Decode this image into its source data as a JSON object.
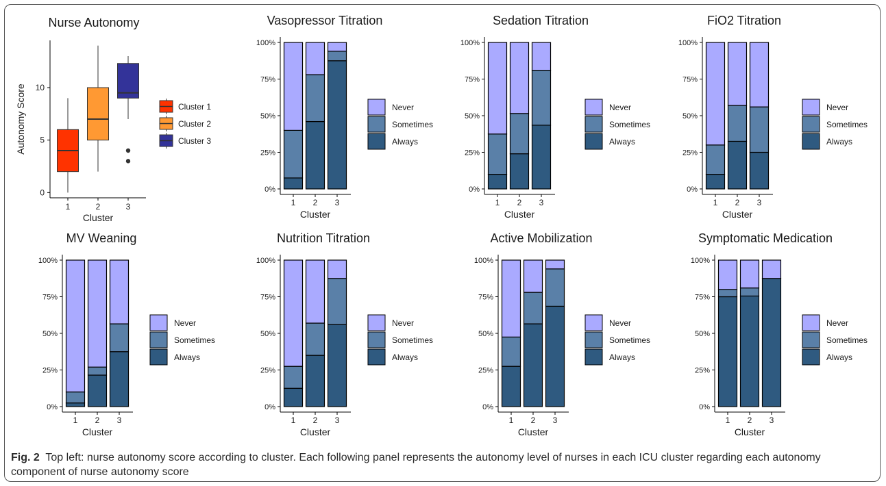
{
  "caption": {
    "label": "Fig. 2",
    "text": "Top left: nurse autonomy score according to cluster. Each following panel represents the autonomy level of nurses in each ICU cluster regarding each autonomy component of nurse autonomy score"
  },
  "colors": {
    "cluster_1": "#FF3300",
    "cluster_2": "#FF9933",
    "cluster_3": "#333399",
    "never": "#AAAAFF",
    "sometimes": "#5A80A8",
    "always": "#2F5A80"
  },
  "chart_data": [
    {
      "type": "box",
      "title": "Nurse Autonomy",
      "xlabel": "Cluster",
      "ylabel": "Autonomy Score",
      "categories": [
        "1",
        "2",
        "3"
      ],
      "ylim": [
        -0.5,
        14.5
      ],
      "yticks": [
        0,
        5,
        10
      ],
      "boxes": [
        {
          "name": "Cluster 1",
          "min": 0,
          "q1": 2,
          "median": 4,
          "q3": 6,
          "max": 9,
          "outliers": []
        },
        {
          "name": "Cluster 2",
          "min": 2,
          "q1": 5,
          "median": 7,
          "q3": 10,
          "max": 14,
          "outliers": []
        },
        {
          "name": "Cluster 3",
          "min": 7,
          "q1": 9,
          "median": 9.5,
          "q3": 12.3,
          "max": 13,
          "outliers": [
            3,
            4
          ]
        }
      ],
      "legend": [
        "Cluster 1",
        "Cluster 2",
        "Cluster 3"
      ],
      "legend_placement": "right",
      "grid": false
    },
    {
      "type": "bar",
      "stacked": true,
      "title": "Vasopressor Titration",
      "xlabel": "Cluster",
      "categories": [
        "1",
        "2",
        "3"
      ],
      "ylim": [
        0,
        100
      ],
      "yticks": [
        "0%",
        "25%",
        "50%",
        "75%",
        "100%"
      ],
      "series": [
        {
          "name": "Always",
          "values": [
            7.5,
            46,
            87.5
          ]
        },
        {
          "name": "Sometimes",
          "values": [
            32.5,
            32,
            6.5
          ]
        },
        {
          "name": "Never",
          "values": [
            60,
            22,
            6
          ]
        }
      ],
      "legend": [
        "Never",
        "Sometimes",
        "Always"
      ],
      "legend_placement": "right",
      "grid": false
    },
    {
      "type": "bar",
      "stacked": true,
      "title": "Sedation Titration",
      "xlabel": "Cluster",
      "categories": [
        "1",
        "2",
        "3"
      ],
      "ylim": [
        0,
        100
      ],
      "yticks": [
        "0%",
        "25%",
        "50%",
        "75%",
        "100%"
      ],
      "series": [
        {
          "name": "Always",
          "values": [
            10,
            24,
            43.5
          ]
        },
        {
          "name": "Sometimes",
          "values": [
            27.5,
            27.5,
            37.5
          ]
        },
        {
          "name": "Never",
          "values": [
            62.5,
            48.5,
            19
          ]
        }
      ],
      "legend": [
        "Never",
        "Sometimes",
        "Always"
      ],
      "legend_placement": "right",
      "grid": false
    },
    {
      "type": "bar",
      "stacked": true,
      "title": "FiO2 Titration",
      "xlabel": "Cluster",
      "categories": [
        "1",
        "2",
        "3"
      ],
      "ylim": [
        0,
        100
      ],
      "yticks": [
        "0%",
        "25%",
        "50%",
        "75%",
        "100%"
      ],
      "series": [
        {
          "name": "Always",
          "values": [
            10,
            32.5,
            25
          ]
        },
        {
          "name": "Sometimes",
          "values": [
            20,
            24.5,
            31
          ]
        },
        {
          "name": "Never",
          "values": [
            70,
            43,
            44
          ]
        }
      ],
      "legend": [
        "Never",
        "Sometimes",
        "Always"
      ],
      "legend_placement": "right",
      "grid": false
    },
    {
      "type": "bar",
      "stacked": true,
      "title": "MV Weaning",
      "xlabel": "Cluster",
      "categories": [
        "1",
        "2",
        "3"
      ],
      "ylim": [
        0,
        100
      ],
      "yticks": [
        "0%",
        "25%",
        "50%",
        "75%",
        "100%"
      ],
      "series": [
        {
          "name": "Always",
          "values": [
            2.5,
            21.5,
            37.5
          ]
        },
        {
          "name": "Sometimes",
          "values": [
            7.5,
            5.5,
            19
          ]
        },
        {
          "name": "Never",
          "values": [
            90,
            73,
            43.5
          ]
        }
      ],
      "legend": [
        "Never",
        "Sometimes",
        "Always"
      ],
      "legend_placement": "right",
      "grid": false
    },
    {
      "type": "bar",
      "stacked": true,
      "title": "Nutrition Titration",
      "xlabel": "Cluster",
      "categories": [
        "1",
        "2",
        "3"
      ],
      "ylim": [
        0,
        100
      ],
      "yticks": [
        "0%",
        "25%",
        "50%",
        "75%",
        "100%"
      ],
      "series": [
        {
          "name": "Always",
          "values": [
            12.5,
            35,
            56
          ]
        },
        {
          "name": "Sometimes",
          "values": [
            15,
            22,
            31.5
          ]
        },
        {
          "name": "Never",
          "values": [
            72.5,
            43,
            12.5
          ]
        }
      ],
      "legend": [
        "Never",
        "Sometimes",
        "Always"
      ],
      "legend_placement": "right",
      "grid": false
    },
    {
      "type": "bar",
      "stacked": true,
      "title": "Active Mobilization",
      "xlabel": "Cluster",
      "categories": [
        "1",
        "2",
        "3"
      ],
      "ylim": [
        0,
        100
      ],
      "yticks": [
        "0%",
        "25%",
        "50%",
        "75%",
        "100%"
      ],
      "series": [
        {
          "name": "Always",
          "values": [
            27.5,
            56.5,
            68.5
          ]
        },
        {
          "name": "Sometimes",
          "values": [
            20,
            21.5,
            25.5
          ]
        },
        {
          "name": "Never",
          "values": [
            52.5,
            22,
            6
          ]
        }
      ],
      "legend": [
        "Never",
        "Sometimes",
        "Always"
      ],
      "legend_placement": "right",
      "grid": false
    },
    {
      "type": "bar",
      "stacked": true,
      "title": "Symptomatic Medication",
      "xlabel": "Cluster",
      "categories": [
        "1",
        "2",
        "3"
      ],
      "ylim": [
        0,
        100
      ],
      "yticks": [
        "0%",
        "25%",
        "50%",
        "75%",
        "100%"
      ],
      "series": [
        {
          "name": "Always",
          "values": [
            75,
            75.5,
            87.5
          ]
        },
        {
          "name": "Sometimes",
          "values": [
            5,
            5.5,
            0
          ]
        },
        {
          "name": "Never",
          "values": [
            20,
            19,
            12.5
          ]
        }
      ],
      "legend": [
        "Never",
        "Sometimes",
        "Always"
      ],
      "legend_placement": "right",
      "grid": false
    }
  ]
}
